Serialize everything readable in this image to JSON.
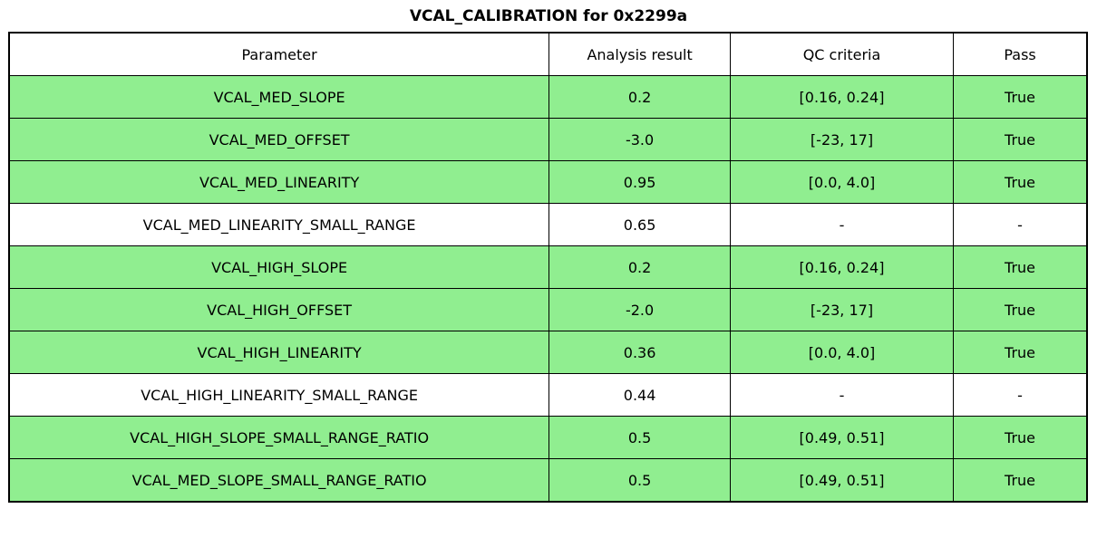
{
  "title": "VCAL_CALIBRATION for 0x2299a",
  "colors": {
    "pass_green": "#90EE90",
    "border": "#000000",
    "text": "#000000",
    "background": "#FFFFFF"
  },
  "chart_data": {
    "type": "table",
    "title": "VCAL_CALIBRATION for 0x2299a",
    "columns": [
      "Parameter",
      "Analysis result",
      "QC criteria",
      "Pass"
    ],
    "rows": [
      {
        "parameter": "VCAL_MED_SLOPE",
        "result": "0.2",
        "criteria": "[0.16, 0.24]",
        "pass": "True",
        "highlighted": true
      },
      {
        "parameter": "VCAL_MED_OFFSET",
        "result": "-3.0",
        "criteria": "[-23, 17]",
        "pass": "True",
        "highlighted": true
      },
      {
        "parameter": "VCAL_MED_LINEARITY",
        "result": "0.95",
        "criteria": "[0.0, 4.0]",
        "pass": "True",
        "highlighted": true
      },
      {
        "parameter": "VCAL_MED_LINEARITY_SMALL_RANGE",
        "result": "0.65",
        "criteria": "-",
        "pass": "-",
        "highlighted": false
      },
      {
        "parameter": "VCAL_HIGH_SLOPE",
        "result": "0.2",
        "criteria": "[0.16, 0.24]",
        "pass": "True",
        "highlighted": true
      },
      {
        "parameter": "VCAL_HIGH_OFFSET",
        "result": "-2.0",
        "criteria": "[-23, 17]",
        "pass": "True",
        "highlighted": true
      },
      {
        "parameter": "VCAL_HIGH_LINEARITY",
        "result": "0.36",
        "criteria": "[0.0, 4.0]",
        "pass": "True",
        "highlighted": true
      },
      {
        "parameter": "VCAL_HIGH_LINEARITY_SMALL_RANGE",
        "result": "0.44",
        "criteria": "-",
        "pass": "-",
        "highlighted": false
      },
      {
        "parameter": "VCAL_HIGH_SLOPE_SMALL_RANGE_RATIO",
        "result": "0.5",
        "criteria": "[0.49, 0.51]",
        "pass": "True",
        "highlighted": true
      },
      {
        "parameter": "VCAL_MED_SLOPE_SMALL_RANGE_RATIO",
        "result": "0.5",
        "criteria": "[0.49, 0.51]",
        "pass": "True",
        "highlighted": true
      }
    ]
  }
}
